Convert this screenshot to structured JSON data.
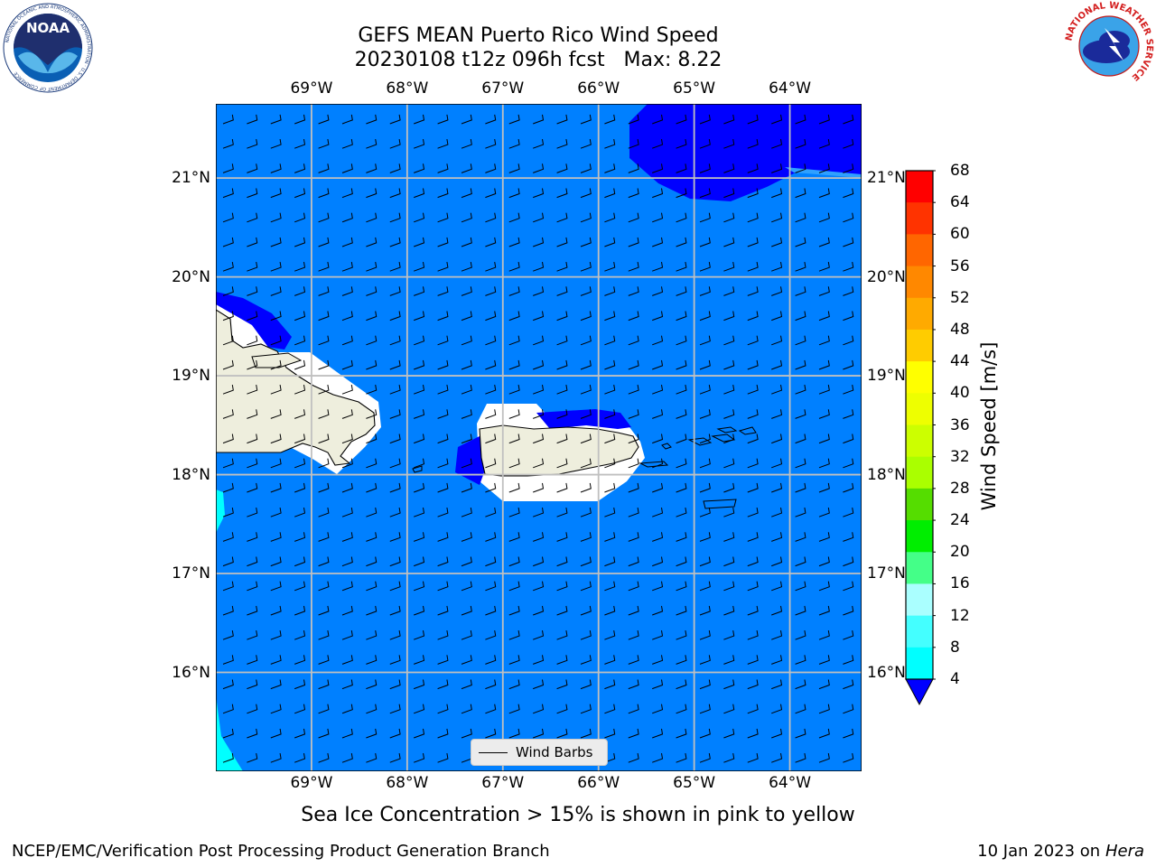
{
  "title": {
    "line1": "GEFS MEAN Puerto Rico Wind Speed",
    "line2": "20230108 t12z 096h fcst   Max: 8.22"
  },
  "map": {
    "lon_labels": [
      "69°W",
      "68°W",
      "67°W",
      "66°W",
      "65°W",
      "64°W"
    ],
    "lat_labels": [
      "21°N",
      "20°N",
      "19°N",
      "18°N",
      "17°N",
      "16°N"
    ],
    "extent": {
      "lon_min": -70.0,
      "lon_max": -63.25,
      "lat_min": 15.0,
      "lat_max": 21.75
    },
    "colors": {
      "ocean": "#0080ff",
      "strong": "#0000ff",
      "weak": "#00ffff",
      "land": "#eeeedd",
      "mask": "#ffffff",
      "grid": "#c0c0c0"
    },
    "legend_label": "Wind Barbs"
  },
  "colorbar": {
    "label": "Wind Speed [m/s]",
    "ticks": [
      "68",
      "64",
      "60",
      "56",
      "52",
      "48",
      "44",
      "40",
      "36",
      "32",
      "28",
      "24",
      "20",
      "16",
      "12",
      "8",
      "4"
    ],
    "colors": [
      "#ff0000",
      "#ff3300",
      "#ff6600",
      "#ff8800",
      "#ffaa00",
      "#ffcc00",
      "#ffff00",
      "#eeff00",
      "#ccff00",
      "#aaff00",
      "#55dd00",
      "#00ee00",
      "#44ff88",
      "#aaffff",
      "#44ffff",
      "#00ffff",
      "#0080ff"
    ],
    "under_color": "#0000ff"
  },
  "subtitle": "Sea Ice Concentration > 15% is shown in pink to yellow",
  "footer": {
    "left": "NCEP/EMC/Verification Post Processing Product Generation Branch",
    "right_prefix": "10 Jan 2023 on ",
    "right_machine": "Hera"
  },
  "logos": {
    "noaa": "NOAA",
    "noaa_ring": "NATIONAL OCEANIC AND ATMOSPHERIC ADMINISTRATION · U.S. DEPARTMENT OF COMMERCE",
    "nws_ring": "NATIONAL WEATHER SERVICE"
  }
}
